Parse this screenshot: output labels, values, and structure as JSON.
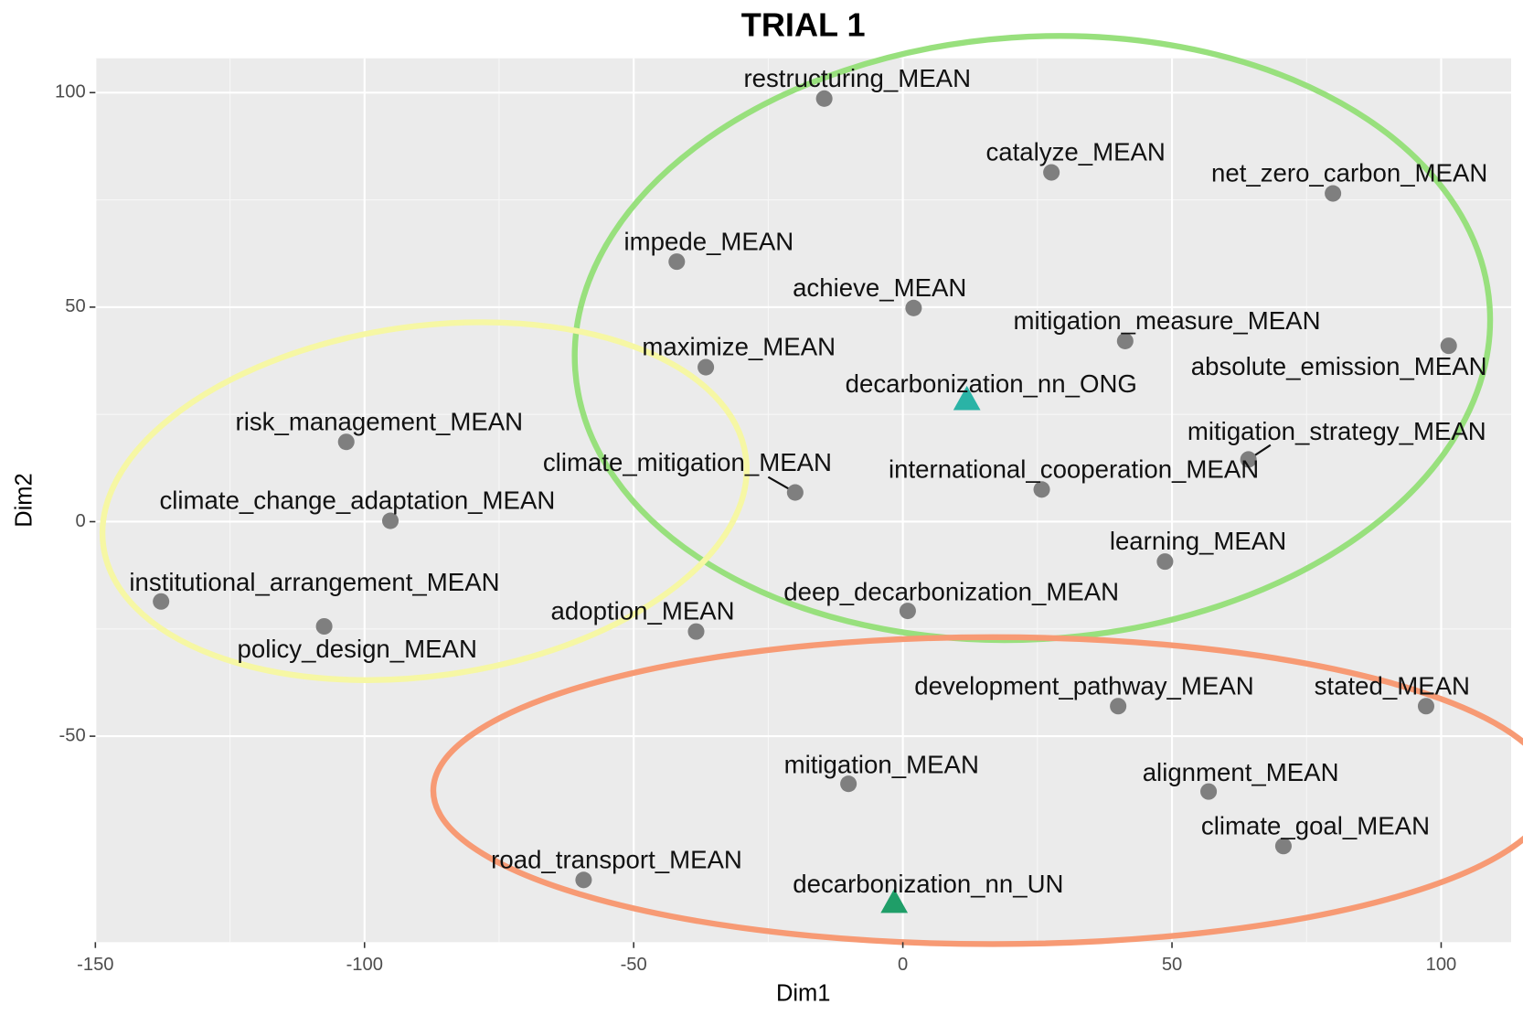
{
  "chart_data": {
    "type": "scatter",
    "title": "TRIAL 1",
    "xlabel": "Dim1",
    "ylabel": "Dim2",
    "labels": [
      "restructuring_MEAN",
      "catalyze_MEAN",
      "net_zero_carbon_MEAN",
      "impede_MEAN",
      "achieve_MEAN",
      "mitigation_measure_MEAN",
      "absolute_emission_MEAN",
      "maximize_MEAN",
      "decarbonization_nn_ONG",
      "risk_management_MEAN",
      "mitigation_strategy_MEAN",
      "climate_mitigation_MEAN",
      "international_cooperation_MEAN",
      "climate_change_adaptation_MEAN",
      "learning_MEAN",
      "institutional_arrangement_MEAN",
      "deep_decarbonization_MEAN",
      "policy_design_MEAN",
      "adoption_MEAN",
      "development_pathway_MEAN",
      "stated_MEAN",
      "mitigation_MEAN",
      "alignment_MEAN",
      "climate_goal_MEAN",
      "road_transport_MEAN",
      "decarbonization_nn_UN"
    ],
    "x": [
      -14.6,
      27.6,
      79.9,
      -42.0,
      2.0,
      41.3,
      101.4,
      -36.6,
      11.9,
      -103.4,
      64.2,
      -20.0,
      25.8,
      -95.2,
      48.7,
      -137.8,
      0.9,
      -107.5,
      -38.4,
      40.0,
      97.2,
      -10.1,
      56.8,
      70.7,
      -59.3,
      -1.6
    ],
    "y": [
      98.6,
      81.4,
      76.5,
      60.6,
      49.8,
      42.1,
      41.0,
      36.0,
      28.5,
      18.6,
      14.5,
      6.8,
      7.5,
      0.2,
      -9.3,
      -18.6,
      -20.8,
      -24.4,
      -25.6,
      -43.0,
      -43.0,
      -61.1,
      -62.9,
      -75.6,
      -83.5,
      -88.7
    ],
    "markers": [
      "circle",
      "circle",
      "circle",
      "circle",
      "circle",
      "circle",
      "circle",
      "circle",
      "triangle",
      "circle",
      "circle",
      "circle",
      "circle",
      "circle",
      "circle",
      "circle",
      "circle",
      "circle",
      "circle",
      "circle",
      "circle",
      "circle",
      "circle",
      "circle",
      "circle",
      "triangle"
    ],
    "colors": [
      "#7f7f7f",
      "#7f7f7f",
      "#7f7f7f",
      "#7f7f7f",
      "#7f7f7f",
      "#7f7f7f",
      "#7f7f7f",
      "#7f7f7f",
      "#2ab3a6",
      "#7f7f7f",
      "#7f7f7f",
      "#7f7f7f",
      "#7f7f7f",
      "#7f7f7f",
      "#7f7f7f",
      "#7f7f7f",
      "#7f7f7f",
      "#7f7f7f",
      "#7f7f7f",
      "#7f7f7f",
      "#7f7f7f",
      "#7f7f7f",
      "#7f7f7f",
      "#7f7f7f",
      "#7f7f7f",
      "#1f9e68"
    ],
    "xlim": [
      -150,
      113
    ],
    "xticks": [
      -150,
      -100,
      -50,
      0,
      50,
      100
    ],
    "ylim": [
      -98,
      108
    ],
    "yticks": [
      -50,
      0,
      50,
      100
    ],
    "grid": true
  }
}
